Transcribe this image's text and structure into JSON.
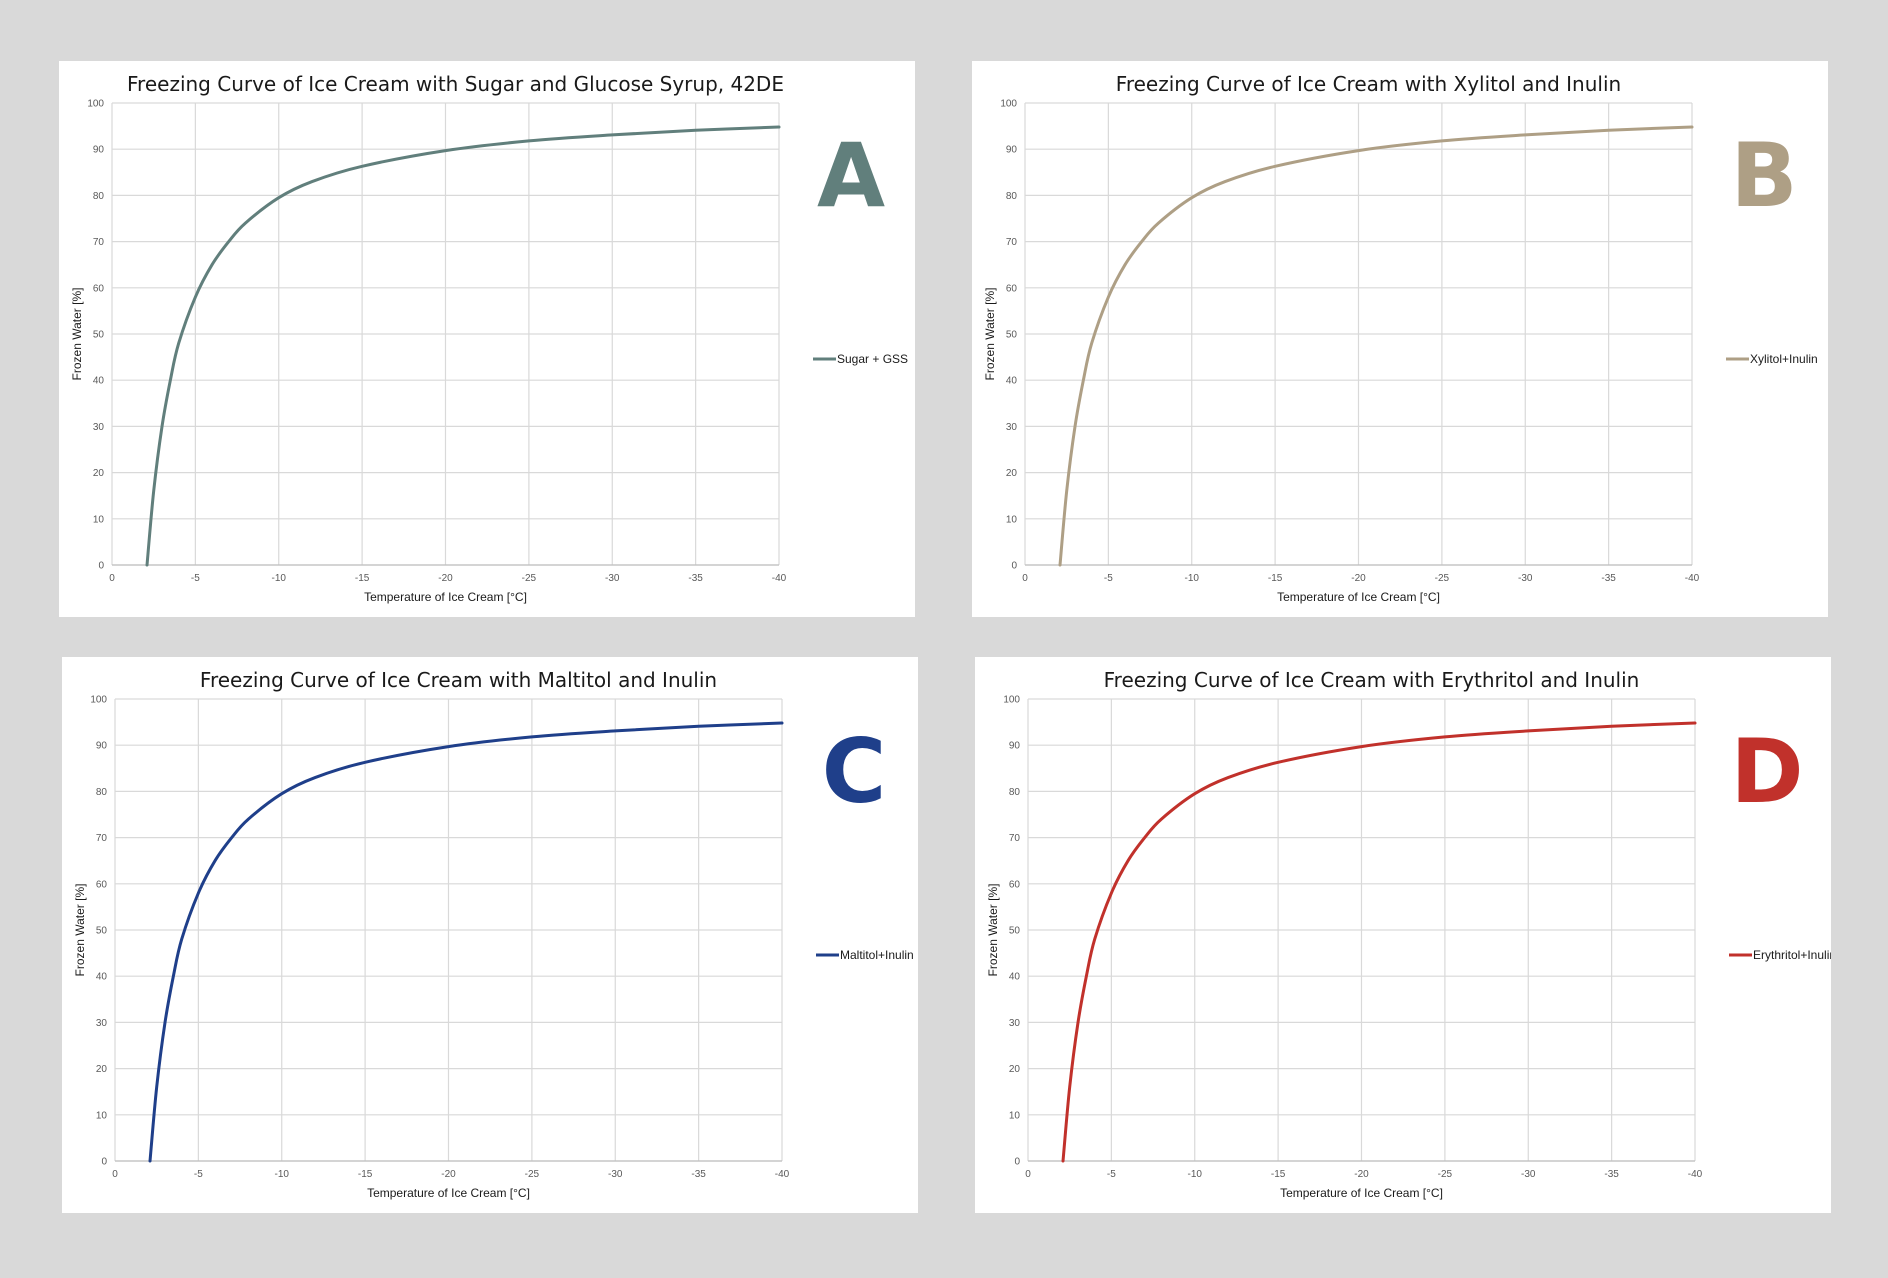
{
  "chart_data": [
    {
      "type": "line",
      "panel_letter": "A",
      "title": "Freezing Curve of Ice Cream with Sugar and Glucose Syrup, 42DE",
      "xlabel": "Temperature of Ice Cream [°C]",
      "ylabel": "Frozen Water [%]",
      "xlim": [
        0,
        -40
      ],
      "ylim": [
        0,
        100
      ],
      "x_ticks": [
        0,
        -5,
        -10,
        -15,
        -20,
        -25,
        -30,
        -35,
        -40
      ],
      "y_ticks": [
        0,
        10,
        20,
        30,
        40,
        50,
        60,
        70,
        80,
        90,
        100
      ],
      "grid": true,
      "legend_position": "right",
      "color": "#617f7c",
      "series": [
        {
          "name": "Sugar + GSS",
          "x": [
            -2.1,
            -2.5,
            -3,
            -3.5,
            -4,
            -5,
            -6,
            -7,
            -8,
            -10,
            -12,
            -15,
            -20,
            -25,
            -30,
            -35,
            -40
          ],
          "y": [
            0,
            16,
            30,
            40,
            48,
            58,
            65,
            70,
            74,
            79.5,
            83,
            86.3,
            89.7,
            91.8,
            93.1,
            94.1,
            94.8
          ]
        }
      ]
    },
    {
      "type": "line",
      "panel_letter": "B",
      "title": "Freezing Curve of Ice Cream with Xylitol and Inulin",
      "xlabel": "Temperature of Ice Cream [°C]",
      "ylabel": "Frozen Water [%]",
      "xlim": [
        0,
        -40
      ],
      "ylim": [
        0,
        100
      ],
      "x_ticks": [
        0,
        -5,
        -10,
        -15,
        -20,
        -25,
        -30,
        -35,
        -40
      ],
      "y_ticks": [
        0,
        10,
        20,
        30,
        40,
        50,
        60,
        70,
        80,
        90,
        100
      ],
      "grid": true,
      "legend_position": "right",
      "color": "#ae9f85",
      "series": [
        {
          "name": "Xylitol+Inulin",
          "x": [
            -2.1,
            -2.5,
            -3,
            -3.5,
            -4,
            -5,
            -6,
            -7,
            -8,
            -10,
            -12,
            -15,
            -20,
            -25,
            -30,
            -35,
            -40
          ],
          "y": [
            0,
            16,
            30,
            40,
            48,
            58,
            65,
            70,
            74,
            79.5,
            83,
            86.3,
            89.7,
            91.8,
            93.1,
            94.1,
            94.8
          ]
        }
      ]
    },
    {
      "type": "line",
      "panel_letter": "C",
      "title": "Freezing Curve of Ice Cream with Maltitol and Inulin",
      "xlabel": "Temperature of Ice Cream [°C]",
      "ylabel": "Frozen Water [%]",
      "xlim": [
        0,
        -40
      ],
      "ylim": [
        0,
        100
      ],
      "x_ticks": [
        0,
        -5,
        -10,
        -15,
        -20,
        -25,
        -30,
        -35,
        -40
      ],
      "y_ticks": [
        0,
        10,
        20,
        30,
        40,
        50,
        60,
        70,
        80,
        90,
        100
      ],
      "grid": true,
      "legend_position": "right",
      "color": "#1f3f8a",
      "series": [
        {
          "name": "Maltitol+Inulin",
          "x": [
            -2.1,
            -2.5,
            -3,
            -3.5,
            -4,
            -5,
            -6,
            -7,
            -8,
            -10,
            -12,
            -15,
            -20,
            -25,
            -30,
            -35,
            -40
          ],
          "y": [
            0,
            16,
            30,
            40,
            48,
            58,
            65,
            70,
            74,
            79.5,
            83,
            86.3,
            89.7,
            91.8,
            93.1,
            94.1,
            94.8
          ]
        }
      ]
    },
    {
      "type": "line",
      "panel_letter": "D",
      "title": "Freezing Curve of Ice Cream with Erythritol and Inulin",
      "xlabel": "Temperature of Ice Cream [°C]",
      "ylabel": "Frozen Water [%]",
      "xlim": [
        0,
        -40
      ],
      "ylim": [
        0,
        100
      ],
      "x_ticks": [
        0,
        -5,
        -10,
        -15,
        -20,
        -25,
        -30,
        -35,
        -40
      ],
      "y_ticks": [
        0,
        10,
        20,
        30,
        40,
        50,
        60,
        70,
        80,
        90,
        100
      ],
      "grid": true,
      "legend_position": "right",
      "color": "#c1312b",
      "series": [
        {
          "name": "Erythritol+Inulin",
          "x": [
            -2.1,
            -2.5,
            -3,
            -3.5,
            -4,
            -5,
            -6,
            -7,
            -8,
            -10,
            -12,
            -15,
            -20,
            -25,
            -30,
            -35,
            -40
          ],
          "y": [
            0,
            16,
            30,
            40,
            48,
            58,
            65,
            70,
            74,
            79.5,
            83,
            86.3,
            89.7,
            91.8,
            93.1,
            94.1,
            94.8
          ]
        }
      ]
    }
  ]
}
